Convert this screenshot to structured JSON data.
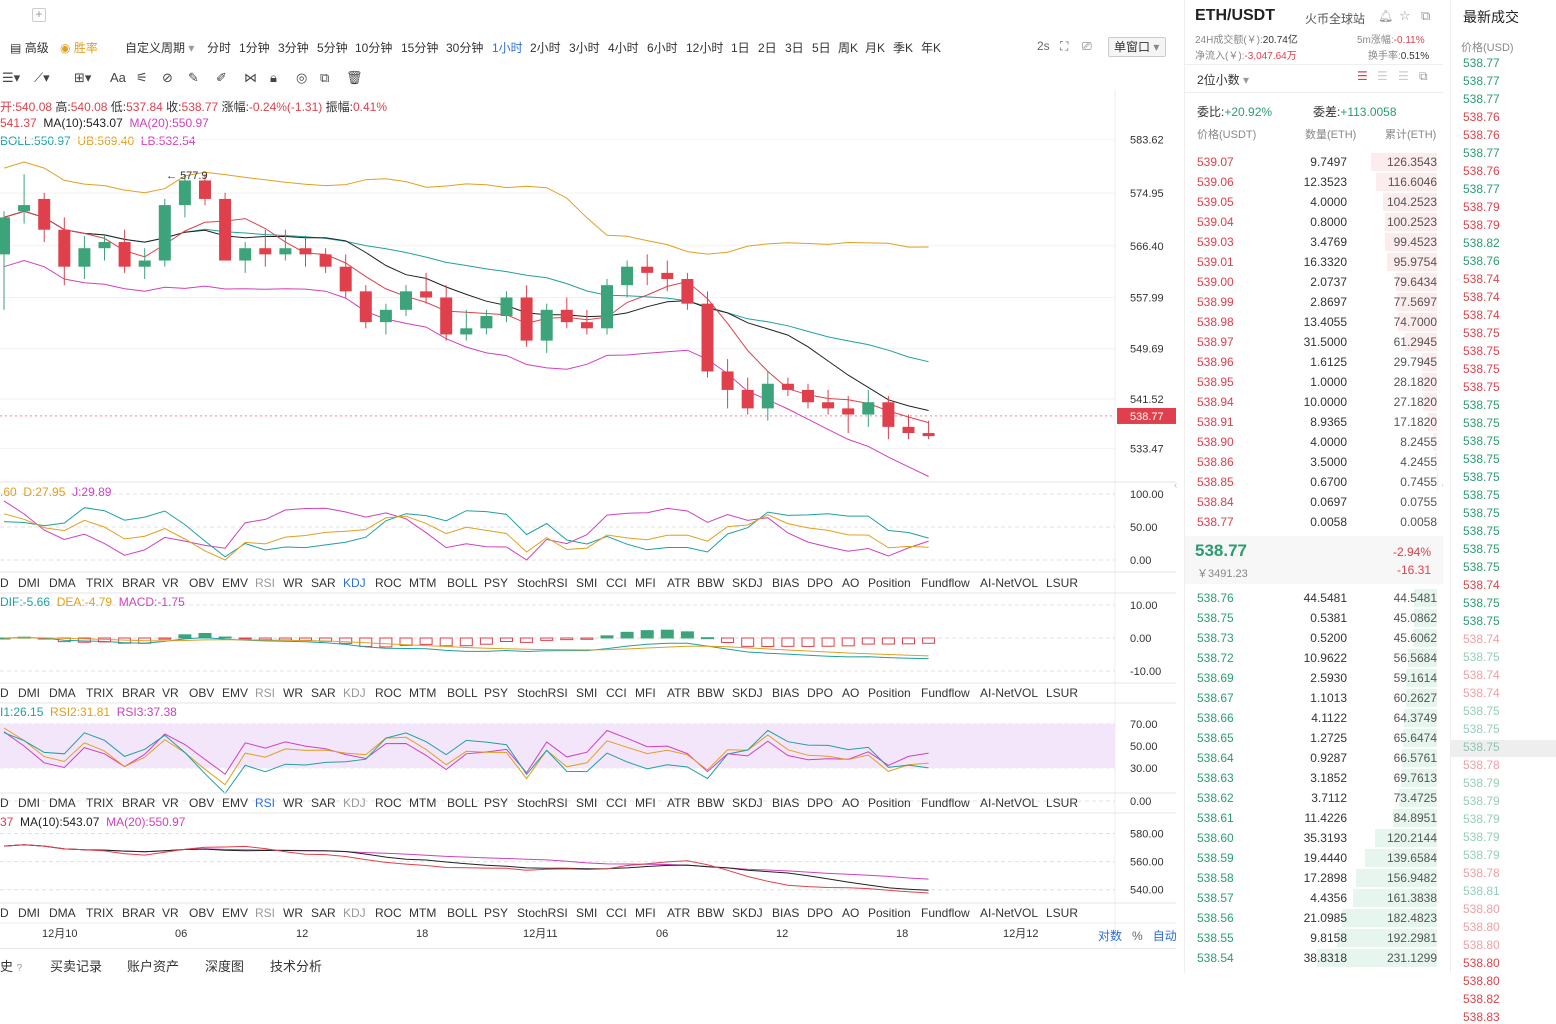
{
  "toolbar": {
    "plus": "+",
    "advanced": "高级",
    "winrate": "胜率",
    "custom_period": "自定义周期",
    "periods": [
      "分时",
      "1分钟",
      "3分钟",
      "5分钟",
      "10分钟",
      "15分钟",
      "30分钟",
      "1小时",
      "2小时",
      "3小时",
      "4小时",
      "6小时",
      "12小时",
      "1日",
      "2日",
      "3日",
      "5日",
      "周K",
      "月K",
      "季K",
      "年K"
    ],
    "active_period": "1小时",
    "refresh": "2s",
    "window_mode": "单窗口",
    "font_tool": "Aa"
  },
  "ohlc": {
    "open": "开:540.08",
    "high_label": "高:",
    "high": "540.08",
    "low_label": "低:",
    "low": "537.84",
    "close_label": "收:",
    "close": "538.77",
    "chg_label": "涨幅:",
    "chg": "-0.24%(-1.31)",
    "amp_label": "振幅:",
    "amp": "0.41%"
  },
  "ma_line": {
    "ma5": "541.37",
    "ma10": "MA(10):543.07",
    "ma20": "MA(20):550.97"
  },
  "boll_line": {
    "boll": "BOLL:550.97",
    "ub": "UB:569.40",
    "lb": "LB:532.54"
  },
  "kdj_line": {
    "k": ".60",
    "d": "D:27.95",
    "j": "J:29.89"
  },
  "macd_line": {
    "dif": "DIF:-5.66",
    "dea": "DEA:-4.79",
    "macd": "MACD:-1.75"
  },
  "rsi_line": {
    "r1": "I1:26.15",
    "r2": "RSI2:31.81",
    "r3": "RSI3:37.38"
  },
  "ma2_line": {
    "a": "37",
    "b": "MA(10):543.07",
    "c": "MA(20):550.97"
  },
  "price_axis": [
    "583.62",
    "574.95",
    "566.40",
    "557.99",
    "549.69",
    "541.52",
    "533.47"
  ],
  "current_price": "538.77",
  "high_marker": "577.9",
  "kdj_axis": [
    "100.00",
    "50.00",
    "0.00"
  ],
  "macd_axis": [
    "10.00",
    "0.00",
    "-10.00"
  ],
  "rsi_axis": [
    "70.00",
    "50.00",
    "30.00",
    "0.00"
  ],
  "ma2_axis": [
    "580.00",
    "560.00",
    "540.00"
  ],
  "indicator_tabs": [
    "D",
    "DMI",
    "DMA",
    "TRIX",
    "BRAR",
    "VR",
    "OBV",
    "EMV",
    "RSI",
    "WR",
    "SAR",
    "KDJ",
    "ROC",
    "MTM",
    "BOLL",
    "PSY",
    "StochRSI",
    "SMI",
    "CCI",
    "MFI",
    "ATR",
    "BBW",
    "SKDJ",
    "BIAS",
    "DPO",
    "AO",
    "Position",
    "Fundflow",
    "AI-NetVOL",
    "LSUR"
  ],
  "time_axis": [
    "12月10",
    "06",
    "12",
    "18",
    "12月11",
    "06",
    "12",
    "18",
    "12月12"
  ],
  "scale_opts": {
    "log": "对数",
    "pct": "%",
    "auto": "自动"
  },
  "bottom_tabs": [
    "史",
    "买卖记录",
    "账户资产",
    "深度图",
    "技术分析"
  ],
  "orderbook": {
    "pair": "ETH/USDT",
    "exchange": "火币全球站",
    "vol_label": "24H成交额(￥):",
    "vol": "20.74亿",
    "chg5_label": "5m涨幅:",
    "chg5": "-0.11%",
    "inflow_label": "净流入(￥):",
    "inflow": "-3,047.64万",
    "turnover_label": "换手率:",
    "turnover": "0.51%",
    "decimals": "2位小数",
    "ratio_label": "委比:",
    "ratio": "+20.92%",
    "diff_label": "委差:",
    "diff": "+113.0058",
    "col_price": "价格(USDT)",
    "col_qty": "数量(ETH)",
    "col_total": "累计(ETH)",
    "asks": [
      [
        "539.07",
        "9.7497",
        "126.3543"
      ],
      [
        "539.06",
        "12.3523",
        "116.6046"
      ],
      [
        "539.05",
        "4.0000",
        "104.2523"
      ],
      [
        "539.04",
        "0.8000",
        "100.2523"
      ],
      [
        "539.03",
        "3.4769",
        "99.4523"
      ],
      [
        "539.01",
        "16.3320",
        "95.9754"
      ],
      [
        "539.00",
        "2.0737",
        "79.6434"
      ],
      [
        "538.99",
        "2.8697",
        "77.5697"
      ],
      [
        "538.98",
        "13.4055",
        "74.7000"
      ],
      [
        "538.97",
        "31.5000",
        "61.2945"
      ],
      [
        "538.96",
        "1.6125",
        "29.7945"
      ],
      [
        "538.95",
        "1.0000",
        "28.1820"
      ],
      [
        "538.94",
        "10.0000",
        "27.1820"
      ],
      [
        "538.91",
        "8.9365",
        "17.1820"
      ],
      [
        "538.90",
        "4.0000",
        "8.2455"
      ],
      [
        "538.86",
        "3.5000",
        "4.2455"
      ],
      [
        "538.85",
        "0.6700",
        "0.7455"
      ],
      [
        "538.84",
        "0.0697",
        "0.0755"
      ],
      [
        "538.77",
        "0.0058",
        "0.0058"
      ]
    ],
    "last_price": "538.77",
    "last_cny": "￥3491.23",
    "last_pct": "-2.94%",
    "last_chg": "-16.31",
    "bids": [
      [
        "538.76",
        "44.5481",
        "44.5481"
      ],
      [
        "538.75",
        "0.5381",
        "45.0862"
      ],
      [
        "538.73",
        "0.5200",
        "45.6062"
      ],
      [
        "538.72",
        "10.9622",
        "56.5684"
      ],
      [
        "538.69",
        "2.5930",
        "59.1614"
      ],
      [
        "538.67",
        "1.1013",
        "60.2627"
      ],
      [
        "538.66",
        "4.1122",
        "64.3749"
      ],
      [
        "538.65",
        "1.2725",
        "65.6474"
      ],
      [
        "538.64",
        "0.9287",
        "66.5761"
      ],
      [
        "538.63",
        "3.1852",
        "69.7613"
      ],
      [
        "538.62",
        "3.7112",
        "73.4725"
      ],
      [
        "538.61",
        "11.4226",
        "84.8951"
      ],
      [
        "538.60",
        "35.3193",
        "120.2144"
      ],
      [
        "538.59",
        "19.4440",
        "139.6584"
      ],
      [
        "538.58",
        "17.2898",
        "156.9482"
      ],
      [
        "538.57",
        "4.4356",
        "161.3838"
      ],
      [
        "538.56",
        "21.0985",
        "182.4823"
      ],
      [
        "538.55",
        "9.8158",
        "192.2981"
      ],
      [
        "538.54",
        "38.8318",
        "231.1299"
      ]
    ]
  },
  "trades": {
    "title": "最新成交",
    "col": "价格(USD)",
    "rows": [
      [
        "538.77",
        "g"
      ],
      [
        "538.77",
        "g"
      ],
      [
        "538.77",
        "g"
      ],
      [
        "538.76",
        "r"
      ],
      [
        "538.76",
        "r"
      ],
      [
        "538.77",
        "g"
      ],
      [
        "538.76",
        "r"
      ],
      [
        "538.77",
        "g"
      ],
      [
        "538.79",
        "r"
      ],
      [
        "538.79",
        "r"
      ],
      [
        "538.82",
        "g"
      ],
      [
        "538.76",
        "g"
      ],
      [
        "538.74",
        "r"
      ],
      [
        "538.74",
        "r"
      ],
      [
        "538.74",
        "r"
      ],
      [
        "538.75",
        "r"
      ],
      [
        "538.75",
        "r"
      ],
      [
        "538.75",
        "r"
      ],
      [
        "538.75",
        "r"
      ],
      [
        "538.75",
        "g"
      ],
      [
        "538.75",
        "g"
      ],
      [
        "538.75",
        "g"
      ],
      [
        "538.75",
        "g"
      ],
      [
        "538.75",
        "g"
      ],
      [
        "538.75",
        "g"
      ],
      [
        "538.75",
        "g"
      ],
      [
        "538.75",
        "g"
      ],
      [
        "538.75",
        "g"
      ],
      [
        "538.75",
        "g"
      ],
      [
        "538.74",
        "r"
      ],
      [
        "538.75",
        "g"
      ],
      [
        "538.75",
        "g"
      ],
      [
        "538.74",
        "r"
      ],
      [
        "538.75",
        "g"
      ],
      [
        "538.74",
        "r"
      ],
      [
        "538.74",
        "r"
      ],
      [
        "538.75",
        "g"
      ],
      [
        "538.75",
        "g"
      ],
      [
        "538.75",
        "g"
      ],
      [
        "538.78",
        "r"
      ],
      [
        "538.79",
        "g"
      ],
      [
        "538.79",
        "g"
      ],
      [
        "538.79",
        "g"
      ],
      [
        "538.79",
        "g"
      ],
      [
        "538.79",
        "g"
      ],
      [
        "538.78",
        "r"
      ],
      [
        "538.81",
        "g"
      ],
      [
        "538.80",
        "r"
      ],
      [
        "538.80",
        "r"
      ],
      [
        "538.80",
        "r"
      ],
      [
        "538.80",
        "r"
      ],
      [
        "538.80",
        "r"
      ],
      [
        "538.82",
        "r"
      ],
      [
        "538.83",
        "r"
      ]
    ]
  },
  "chart_data": {
    "type": "candlestick",
    "title": "ETH/USDT 1小时",
    "ylim": [
      530,
      590
    ],
    "candles": [
      [
        565,
        572,
        556,
        571
      ],
      [
        572,
        578,
        570,
        573
      ],
      [
        574,
        575,
        567,
        569
      ],
      [
        569,
        571,
        560,
        563
      ],
      [
        563,
        568,
        561,
        566
      ],
      [
        566,
        568,
        564,
        567
      ],
      [
        567,
        569,
        562,
        563
      ],
      [
        563,
        566,
        561,
        564
      ],
      [
        564,
        574,
        563,
        573
      ],
      [
        573,
        578,
        571,
        577
      ],
      [
        577,
        578,
        573,
        574
      ],
      [
        574,
        575,
        564,
        564
      ],
      [
        564,
        567,
        562,
        566
      ],
      [
        566,
        569,
        563,
        565
      ],
      [
        565,
        569,
        564,
        566
      ],
      [
        566,
        568,
        563,
        565
      ],
      [
        565,
        566,
        562,
        563
      ],
      [
        563,
        565,
        558,
        559
      ],
      [
        559,
        560,
        553,
        554
      ],
      [
        554,
        557,
        552,
        556
      ],
      [
        556,
        560,
        555,
        559
      ],
      [
        559,
        562,
        557,
        558
      ],
      [
        558,
        560,
        551,
        552
      ],
      [
        552,
        556,
        551,
        553
      ],
      [
        553,
        556,
        552,
        555
      ],
      [
        555,
        559,
        554,
        558
      ],
      [
        558,
        560,
        550,
        551
      ],
      [
        551,
        557,
        549,
        556
      ],
      [
        556,
        558,
        553,
        554
      ],
      [
        554,
        556,
        552,
        553
      ],
      [
        553,
        561,
        552,
        560
      ],
      [
        560,
        564,
        558,
        563
      ],
      [
        563,
        565,
        560,
        562
      ],
      [
        562,
        564,
        559,
        561
      ],
      [
        561,
        562,
        556,
        557
      ],
      [
        557,
        559,
        545,
        546
      ],
      [
        546,
        548,
        540,
        543
      ],
      [
        543,
        545,
        539,
        540
      ],
      [
        540,
        546,
        538,
        544
      ],
      [
        544,
        545,
        542,
        543
      ],
      [
        543,
        544,
        540,
        541
      ],
      [
        541,
        543,
        539,
        540
      ],
      [
        540,
        542,
        536,
        539
      ],
      [
        539,
        543,
        537,
        541
      ],
      [
        541,
        542,
        535,
        537
      ],
      [
        537,
        539,
        535,
        536
      ],
      [
        536,
        538,
        535,
        535.5
      ]
    ]
  }
}
